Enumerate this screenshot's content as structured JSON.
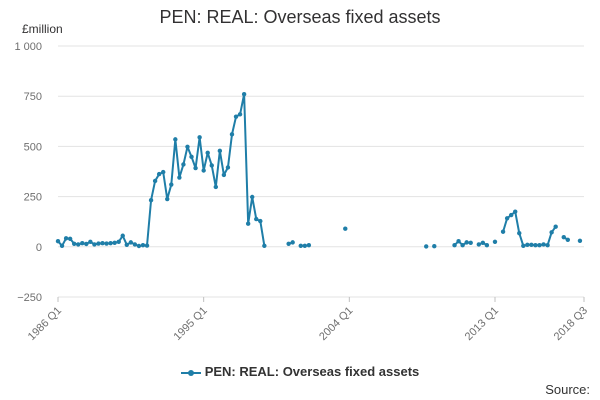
{
  "title": "PEN: REAL: Overseas fixed assets",
  "y_unit_label": "£million",
  "legend_label": "PEN: REAL: Overseas fixed assets",
  "source_label": "Source:",
  "colors": {
    "series": "#1f7ea8",
    "grid": "#e3e3e3",
    "text": "#323132"
  },
  "chart_data": {
    "type": "line",
    "title": "PEN: REAL: Overseas fixed assets",
    "ylabel": "£million",
    "xlabel": "",
    "ylim": [
      -250,
      1000
    ],
    "yticks": [
      -250,
      0,
      250,
      500,
      750,
      1000
    ],
    "ytick_labels": [
      "−250",
      "0",
      "250",
      "500",
      "750",
      "1 000"
    ],
    "x_start_quarter": "1986 Q1",
    "x_end_quarter": "2018 Q3",
    "xticks": [
      "1986 Q1",
      "1995 Q1",
      "2004 Q1",
      "2013 Q1",
      "2018 Q3"
    ],
    "grid": true,
    "legend_position": "bottom",
    "series": [
      {
        "name": "PEN: REAL: Overseas fixed assets",
        "points": [
          [
            "1986 Q1",
            28
          ],
          [
            "1986 Q2",
            5
          ],
          [
            "1986 Q3",
            42
          ],
          [
            "1986 Q4",
            40
          ],
          [
            "1987 Q1",
            15
          ],
          [
            "1987 Q2",
            12
          ],
          [
            "1987 Q3",
            18
          ],
          [
            "1987 Q4",
            14
          ],
          [
            "1988 Q1",
            25
          ],
          [
            "1988 Q2",
            12
          ],
          [
            "1988 Q3",
            16
          ],
          [
            "1988 Q4",
            18
          ],
          [
            "1989 Q1",
            16
          ],
          [
            "1989 Q2",
            18
          ],
          [
            "1989 Q3",
            20
          ],
          [
            "1989 Q4",
            25
          ],
          [
            "1990 Q1",
            55
          ],
          [
            "1990 Q2",
            10
          ],
          [
            "1990 Q3",
            22
          ],
          [
            "1990 Q4",
            12
          ],
          [
            "1991 Q1",
            4
          ],
          [
            "1991 Q2",
            8
          ],
          [
            "1991 Q3",
            6
          ],
          [
            "1991 Q4",
            232
          ],
          [
            "1992 Q1",
            328
          ],
          [
            "1992 Q2",
            362
          ],
          [
            "1992 Q3",
            372
          ],
          [
            "1992 Q4",
            238
          ],
          [
            "1993 Q1",
            310
          ],
          [
            "1993 Q2",
            535
          ],
          [
            "1993 Q3",
            345
          ],
          [
            "1993 Q4",
            410
          ],
          [
            "1994 Q1",
            498
          ],
          [
            "1994 Q2",
            448
          ],
          [
            "1994 Q3",
            392
          ],
          [
            "1994 Q4",
            545
          ],
          [
            "1995 Q1",
            380
          ],
          [
            "1995 Q2",
            468
          ],
          [
            "1995 Q3",
            405
          ],
          [
            "1995 Q4",
            298
          ],
          [
            "1996 Q1",
            478
          ],
          [
            "1996 Q2",
            358
          ],
          [
            "1996 Q3",
            395
          ],
          [
            "1996 Q4",
            560
          ],
          [
            "1997 Q1",
            648
          ],
          [
            "1997 Q2",
            660
          ],
          [
            "1997 Q3",
            760
          ],
          [
            "1997 Q4",
            115
          ],
          [
            "1998 Q1",
            248
          ],
          [
            "1998 Q2",
            138
          ],
          [
            "1998 Q3",
            128
          ],
          [
            "1998 Q4",
            5
          ],
          [
            "1998 Q4",
            null
          ],
          [
            "2000 Q2",
            15
          ],
          [
            "2000 Q3",
            22
          ],
          [
            "2000 Q4",
            null
          ],
          [
            "2001 Q1",
            5
          ],
          [
            "2001 Q2",
            5
          ],
          [
            "2001 Q3",
            8
          ],
          [
            "2001 Q4",
            null
          ],
          [
            "2003 Q4",
            90
          ],
          [
            "2004 Q1",
            null
          ],
          [
            "2008 Q4",
            2
          ],
          [
            "2009 Q1",
            null
          ],
          [
            "2009 Q2",
            3
          ],
          [
            "2009 Q3",
            null
          ],
          [
            "2010 Q3",
            8
          ],
          [
            "2010 Q4",
            28
          ],
          [
            "2011 Q1",
            8
          ],
          [
            "2011 Q2",
            22
          ],
          [
            "2011 Q3",
            20
          ],
          [
            "2011 Q4",
            null
          ],
          [
            "2012 Q1",
            12
          ],
          [
            "2012 Q2",
            20
          ],
          [
            "2012 Q3",
            8
          ],
          [
            "2012 Q4",
            null
          ],
          [
            "2013 Q1",
            25
          ],
          [
            "2013 Q2",
            null
          ],
          [
            "2013 Q3",
            75
          ],
          [
            "2013 Q4",
            142
          ],
          [
            "2014 Q1",
            158
          ],
          [
            "2014 Q2",
            175
          ],
          [
            "2014 Q3",
            68
          ],
          [
            "2014 Q4",
            5
          ],
          [
            "2015 Q1",
            10
          ],
          [
            "2015 Q2",
            10
          ],
          [
            "2015 Q3",
            8
          ],
          [
            "2015 Q4",
            8
          ],
          [
            "2016 Q1",
            12
          ],
          [
            "2016 Q2",
            8
          ],
          [
            "2016 Q3",
            72
          ],
          [
            "2016 Q4",
            100
          ],
          [
            "2017 Q1",
            null
          ],
          [
            "2017 Q2",
            48
          ],
          [
            "2017 Q3",
            35
          ],
          [
            "2017 Q4",
            null
          ],
          [
            "2018 Q2",
            30
          ]
        ]
      }
    ]
  }
}
